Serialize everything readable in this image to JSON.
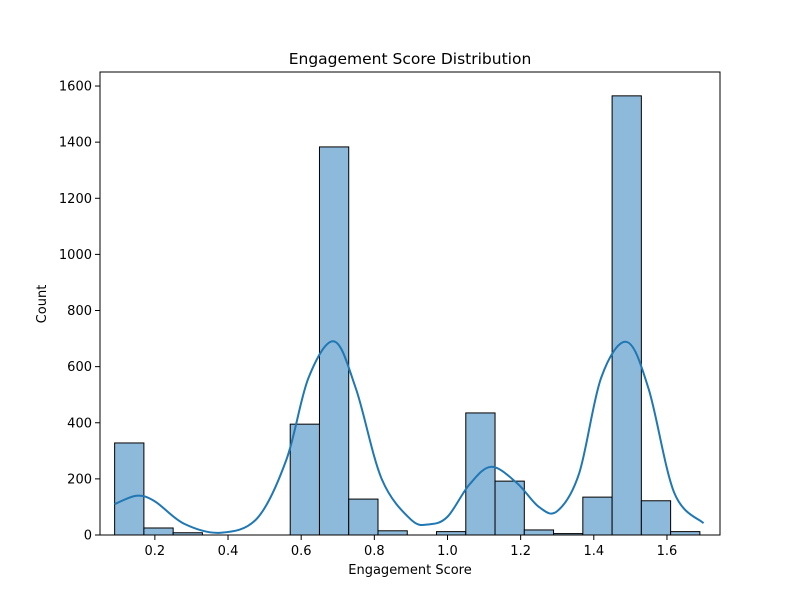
{
  "chart_data": {
    "type": "histogram",
    "title": "Engagement Score Distribution",
    "xlabel": "Engagement Score",
    "ylabel": "Count",
    "xlim": [
      0.05,
      1.745
    ],
    "ylim": [
      0,
      1650
    ],
    "x_ticks": [
      {
        "value": 0.2,
        "label": "0.2"
      },
      {
        "value": 0.4,
        "label": "0.4"
      },
      {
        "value": 0.6,
        "label": "0.6"
      },
      {
        "value": 0.8,
        "label": "0.8"
      },
      {
        "value": 1.0,
        "label": "1.0"
      },
      {
        "value": 1.2,
        "label": "1.2"
      },
      {
        "value": 1.4,
        "label": "1.4"
      },
      {
        "value": 1.6,
        "label": "1.6"
      }
    ],
    "y_ticks": [
      {
        "value": 0,
        "label": "0"
      },
      {
        "value": 200,
        "label": "200"
      },
      {
        "value": 400,
        "label": "400"
      },
      {
        "value": 600,
        "label": "600"
      },
      {
        "value": 800,
        "label": "800"
      },
      {
        "value": 1000,
        "label": "1000"
      },
      {
        "value": 1200,
        "label": "1200"
      },
      {
        "value": 1400,
        "label": "1400"
      },
      {
        "value": 1600,
        "label": "1600"
      }
    ],
    "bins": {
      "edges": [
        0.09,
        0.17,
        0.25,
        0.33,
        0.41,
        0.49,
        0.57,
        0.65,
        0.73,
        0.81,
        0.89,
        0.97,
        1.05,
        1.13,
        1.21,
        1.29,
        1.37,
        1.45,
        1.53,
        1.61,
        1.69
      ],
      "counts": [
        328,
        25,
        8,
        0,
        0,
        0,
        395,
        1383,
        128,
        15,
        0,
        12,
        435,
        192,
        18,
        5,
        135,
        1565,
        122,
        12
      ]
    },
    "kde": {
      "x": [
        0.09,
        0.15,
        0.2,
        0.28,
        0.38,
        0.48,
        0.56,
        0.62,
        0.69,
        0.75,
        0.82,
        0.9,
        0.95,
        1.0,
        1.06,
        1.12,
        1.19,
        1.25,
        1.3,
        1.36,
        1.42,
        1.49,
        1.55,
        1.62,
        1.7
      ],
      "y": [
        110,
        140,
        120,
        40,
        8,
        60,
        270,
        560,
        690,
        520,
        200,
        55,
        38,
        65,
        180,
        243,
        185,
        100,
        85,
        220,
        560,
        688,
        520,
        150,
        42
      ]
    },
    "colors": {
      "bar_fill": "#8db9da",
      "bar_edge": "#000000",
      "kde_line": "#1f77b4"
    },
    "grid": false,
    "legend": "none"
  }
}
